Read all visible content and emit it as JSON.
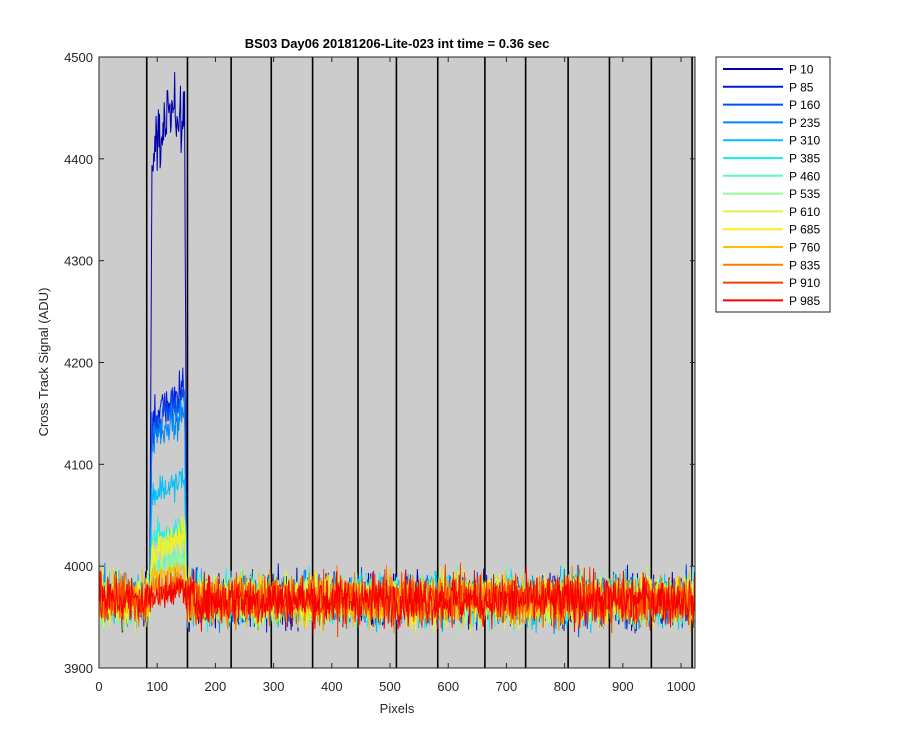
{
  "chart_data": {
    "type": "line",
    "title": "BS03 Day06 20181206-Lite-023 int time = 0.36 sec",
    "xlabel": "Pixels",
    "ylabel": "Cross Track Signal (ADU)",
    "xlim": [
      0,
      1024
    ],
    "ylim": [
      3900,
      4500
    ],
    "xticks": [
      0,
      100,
      200,
      300,
      400,
      500,
      600,
      700,
      800,
      900,
      1000
    ],
    "yticks": [
      3900,
      4000,
      4100,
      4200,
      4300,
      4400,
      4500
    ],
    "background": "#cccccc",
    "vertical_lines_x": [
      82,
      152,
      227,
      296,
      367,
      445,
      511,
      582,
      663,
      733,
      806,
      877,
      949,
      1019
    ],
    "legend_position": "outside-right",
    "baseline": 3967,
    "noise_amplitude": 12,
    "peak_region": [
      88,
      150
    ],
    "series": [
      {
        "name": "P 10",
        "color": "#0000a8",
        "peak_level": 4410,
        "peak_top": 4470
      },
      {
        "name": "P 85",
        "color": "#0018d8",
        "peak_level": 4140,
        "peak_top": 4190
      },
      {
        "name": "P 160",
        "color": "#0050f0",
        "peak_level": 4135,
        "peak_top": 4175
      },
      {
        "name": "P 235",
        "color": "#0088f8",
        "peak_level": 4120,
        "peak_top": 4165
      },
      {
        "name": "P 310",
        "color": "#00c0f8",
        "peak_level": 4065,
        "peak_top": 4090
      },
      {
        "name": "P 385",
        "color": "#18f0f0",
        "peak_level": 4025,
        "peak_top": 4040
      },
      {
        "name": "P 460",
        "color": "#58f8c8",
        "peak_level": 4000,
        "peak_top": 4015
      },
      {
        "name": "P 535",
        "color": "#98f898",
        "peak_level": 3995,
        "peak_top": 4010
      },
      {
        "name": "P 610",
        "color": "#d0f858",
        "peak_level": 4010,
        "peak_top": 4035
      },
      {
        "name": "P 685",
        "color": "#f8f018",
        "peak_level": 4010,
        "peak_top": 4045
      },
      {
        "name": "P 760",
        "color": "#f8c000",
        "peak_level": 3985,
        "peak_top": 4000
      },
      {
        "name": "P 835",
        "color": "#f88000",
        "peak_level": 3975,
        "peak_top": 3990
      },
      {
        "name": "P 910",
        "color": "#f84000",
        "peak_level": 3972,
        "peak_top": 3985
      },
      {
        "name": "P 985",
        "color": "#f80000",
        "peak_level": 3970,
        "peak_top": 3982
      }
    ]
  }
}
